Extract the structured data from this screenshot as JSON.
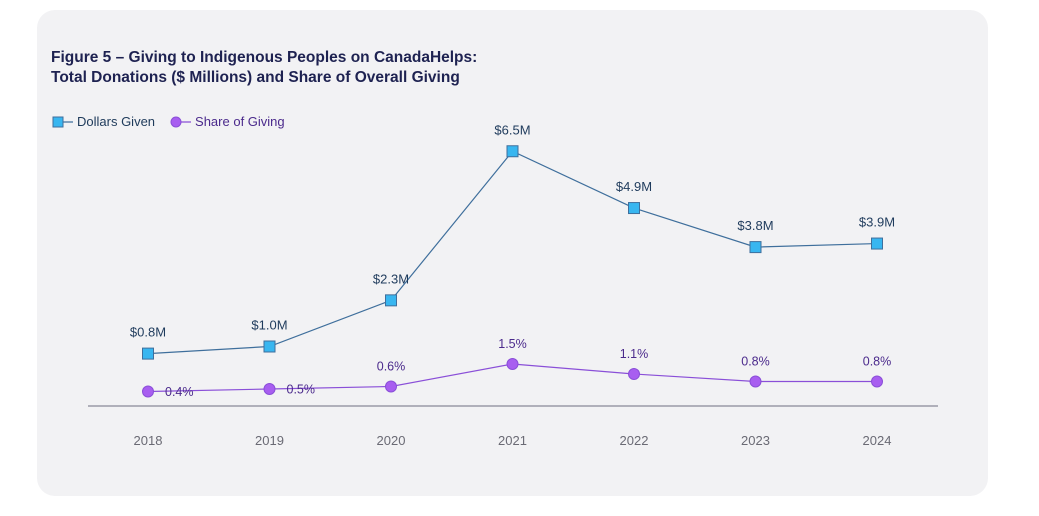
{
  "title": {
    "line1": "Figure 5 – Giving to Indigenous Peoples on CanadaHelps:",
    "line2": "Total Donations ($ Millions) and Share of Overall Giving"
  },
  "legend": [
    {
      "label": "Dollars Given",
      "color": "#38b6f0",
      "marker": "square-icon"
    },
    {
      "label": "Share of Giving",
      "color": "#a85ef0",
      "marker": "circle-icon"
    }
  ],
  "colors": {
    "card_background": "#f2f2f4",
    "dollars_line": "#3f6f9c",
    "dollars_marker": "#38b6f0",
    "share_line": "#8a4fd8",
    "share_marker": "#a85ef0",
    "axis": "#9a9aa6"
  },
  "chart_data": {
    "type": "line",
    "categories": [
      "2018",
      "2019",
      "2020",
      "2021",
      "2022",
      "2023",
      "2024"
    ],
    "series": [
      {
        "name": "Dollars Given",
        "values": [
          0.8,
          1.0,
          2.3,
          6.5,
          4.9,
          3.8,
          3.9
        ],
        "labels": [
          "$0.8M",
          "$1.0M",
          "$2.3M",
          "$6.5M",
          "$4.9M",
          "$3.8M",
          "$3.9M"
        ]
      },
      {
        "name": "Share of Giving",
        "values": [
          0.4,
          0.5,
          0.6,
          1.5,
          1.1,
          0.8,
          0.8
        ],
        "labels": [
          "0.4%",
          "0.5%",
          "0.6%",
          "1.5%",
          "1.1%",
          "0.8%",
          "0.8%"
        ]
      }
    ],
    "grid": false,
    "legend_position": "top-left"
  }
}
